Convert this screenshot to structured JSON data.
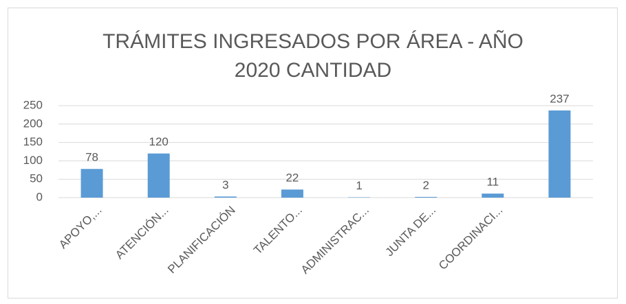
{
  "chart_data": {
    "type": "bar",
    "title": "TRÁMITES INGRESADOS POR ÁREA - AÑO 2020 CANTIDAD",
    "categories": [
      "APOYO,...",
      "ATENCIÓN...",
      "PLANIFICACIÓN",
      "TALENTO...",
      "ADMINISTRAC...",
      "JUNTA DE...",
      "COORDINACI...",
      null
    ],
    "values": [
      78,
      120,
      3,
      22,
      1,
      2,
      11,
      237
    ],
    "color": "#5b9bd5",
    "ylim": [
      0,
      250
    ],
    "yticks": [
      0,
      50,
      100,
      150,
      200,
      250
    ],
    "grid": true
  }
}
